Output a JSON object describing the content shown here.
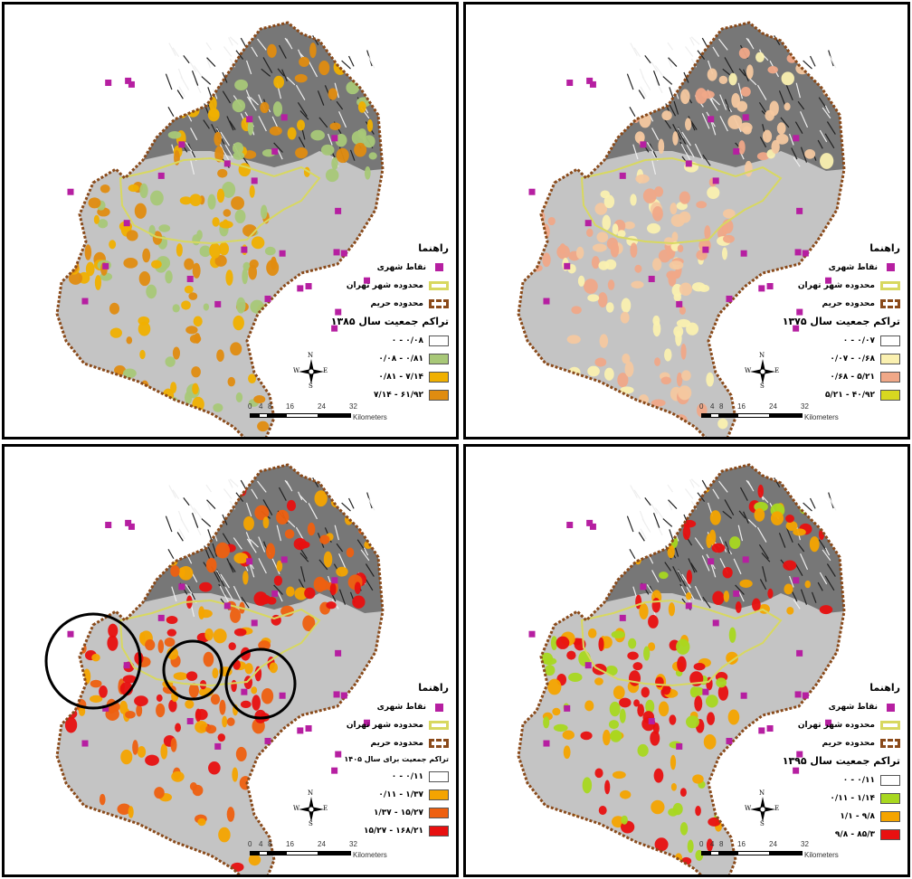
{
  "panels": [
    {
      "id": "1385",
      "legend_title": "راهنما",
      "point_label": "نقاط شهری",
      "city_label": "محدوده شهر تهران",
      "harim_label": "محدوده حریم",
      "density_title": "تراکم جمعیت سال ۱۳۸۵",
      "classes": [
        {
          "label": "۰/۰۸ - ۰",
          "color": "#ffffff"
        },
        {
          "label": "۰/۸۱ - ۰/۰۸",
          "color": "#a8c878"
        },
        {
          "label": "۷/۱۴ - ۰/۸۱",
          "color": "#f0b000"
        },
        {
          "label": "۶۱/۹۲ - ۷/۱۴",
          "color": "#e08c10"
        }
      ],
      "bubble_colors": [
        "#a8c878",
        "#f0b000",
        "#e08c10"
      ],
      "scale_ticks": [
        "0",
        "4",
        "8",
        "16",
        "24",
        "32"
      ],
      "scale_unit": "Kilometers",
      "compass": {
        "n": "N",
        "s": "S",
        "e": "E",
        "w": "W"
      }
    },
    {
      "id": "1375",
      "legend_title": "راهنما",
      "point_label": "نقاط شهری",
      "city_label": "محدوده شهر تهران",
      "harim_label": "محدوده حریم",
      "density_title": "تراکم جمعیت سال ۱۳۷۵",
      "classes": [
        {
          "label": "۰/۰۷ - ۰",
          "color": "#ffffff"
        },
        {
          "label": "۰/۶۸ - ۰/۰۷",
          "color": "#faf0b0"
        },
        {
          "label": "۵/۲۱ - ۰/۶۸",
          "color": "#f0a888"
        },
        {
          "label": "۴۰/۹۲ - ۵/۲۱",
          "color": "#d8d820"
        }
      ],
      "bubble_colors": [
        "#faf0b0",
        "#f0a888",
        "#f4c8a0"
      ],
      "scale_ticks": [
        "0",
        "4",
        "8",
        "16",
        "24",
        "32"
      ],
      "scale_unit": "Kilometers",
      "compass": {
        "n": "N",
        "s": "S",
        "e": "E",
        "w": "W"
      }
    },
    {
      "id": "1405",
      "legend_title": "راهنما",
      "point_label": "نقاط شهری",
      "city_label": "محدوده شهر تهران",
      "harim_label": "محدوده حریم",
      "density_title": "تراکم جمعیت برای سال ۱۴۰۵",
      "classes": [
        {
          "label": "۰/۱۱ - ۰",
          "color": "#ffffff"
        },
        {
          "label": "۱/۳۷ - ۰/۱۱",
          "color": "#f4a400"
        },
        {
          "label": "۱۵/۲۷ - ۱/۳۷",
          "color": "#ee6010"
        },
        {
          "label": "۱۶۸/۲۱ - ۱۵/۲۷",
          "color": "#e81010"
        }
      ],
      "bubble_colors": [
        "#f4a400",
        "#ee6010",
        "#e81010"
      ],
      "scale_ticks": [
        "0",
        "4",
        "8",
        "16",
        "24",
        "32"
      ],
      "scale_unit": "Kilometers",
      "compass": {
        "n": "N",
        "s": "S",
        "e": "E",
        "w": "W"
      }
    },
    {
      "id": "1395",
      "legend_title": "راهنما",
      "point_label": "نقاط شهری",
      "city_label": "محدوده شهر تهران",
      "harim_label": "محدوده حریم",
      "density_title": "تراکم جمعیت سال ۱۳۹۵",
      "classes": [
        {
          "label": "۰/۱۱ - ۰",
          "color": "#ffffff"
        },
        {
          "label": "۱/۱۴ - ۰/۱۱",
          "color": "#a8d820"
        },
        {
          "label": "۹/۸ - ۱/۱",
          "color": "#f4a400"
        },
        {
          "label": "۸۵/۳ - ۹/۸",
          "color": "#e81010"
        }
      ],
      "bubble_colors": [
        "#a8d820",
        "#f4a400",
        "#e81010"
      ],
      "scale_ticks": [
        "0",
        "4",
        "8",
        "16",
        "24",
        "32"
      ],
      "scale_unit": "Kilometers",
      "compass": {
        "n": "N",
        "s": "S",
        "e": "E",
        "w": "W"
      }
    }
  ],
  "colors": {
    "terrain_fill": "#c4c4c4",
    "mountain_fill": "#6a6a6a",
    "harim_border": "#8a4a1a",
    "city_border": "#d8d860",
    "point_color": "#b61fa1"
  }
}
